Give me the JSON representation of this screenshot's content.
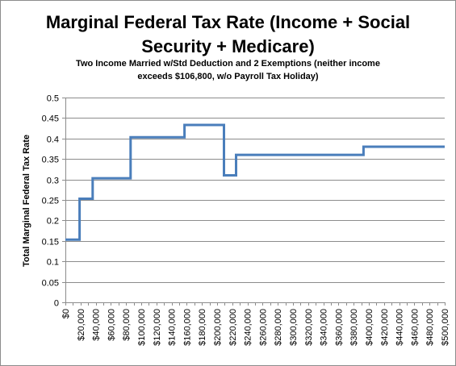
{
  "chart_data": {
    "type": "line",
    "title": "Marginal Federal Tax Rate (Income + Social\nSecurity + Medicare)",
    "subtitle": "Two Income Married w/Std Deduction and 2 Exemptions (neither income\nexceeds $106,800, w/o Payroll Tax Holiday)",
    "xlabel": "",
    "ylabel": "Total Marginal Federal Tax Rate",
    "xlim": [
      0,
      500000
    ],
    "ylim": [
      0,
      0.5
    ],
    "grid": true,
    "legend": "none",
    "step": true,
    "x_tick_labels": [
      "$0",
      "$20,000",
      "$40,000",
      "$60,000",
      "$80,000",
      "$100,000",
      "$120,000",
      "$140,000",
      "$160,000",
      "$180,000",
      "$200,000",
      "$220,000",
      "$240,000",
      "$260,000",
      "$280,000",
      "$300,000",
      "$320,000",
      "$340,000",
      "$360,000",
      "$380,000",
      "$400,000",
      "$420,000",
      "$440,000",
      "$460,000",
      "$480,000",
      "$500,000"
    ],
    "x_tick_values": [
      0,
      20000,
      40000,
      60000,
      80000,
      100000,
      120000,
      140000,
      160000,
      180000,
      200000,
      220000,
      240000,
      260000,
      280000,
      300000,
      320000,
      340000,
      360000,
      380000,
      400000,
      420000,
      440000,
      460000,
      480000,
      500000
    ],
    "y_tick_labels": [
      "0",
      "0.05",
      "0.1",
      "0.15",
      "0.2",
      "0.25",
      "0.3",
      "0.35",
      "0.4",
      "0.45",
      "0.5"
    ],
    "y_tick_values": [
      0,
      0.05,
      0.1,
      0.15,
      0.2,
      0.25,
      0.3,
      0.35,
      0.4,
      0.45,
      0.5
    ],
    "series": [
      {
        "color": "#4a7ebb",
        "x": [
          0,
          18700,
          18700,
          36000,
          36000,
          86000,
          86000,
          157000,
          157000,
          209000,
          209000,
          225000,
          225000,
          393000,
          393000,
          500000
        ],
        "y": [
          0.153,
          0.153,
          0.253,
          0.253,
          0.303,
          0.303,
          0.403,
          0.403,
          0.433,
          0.433,
          0.31,
          0.31,
          0.36,
          0.36,
          0.38,
          0.38
        ]
      }
    ]
  }
}
